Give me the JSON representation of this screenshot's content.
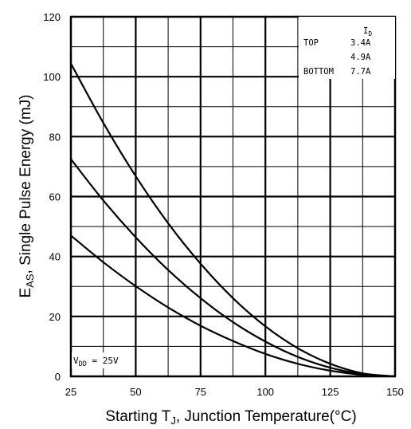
{
  "chart_data": {
    "type": "line",
    "xlabel": "Starting TJ, Junction Temperature(°C)",
    "xlabel_parts": {
      "pre": "Starting T",
      "sub": "J",
      "post": ", Junction Temperature(°C)"
    },
    "ylabel": "EAS, Single Pulse Energy (mJ)",
    "ylabel_parts": {
      "pre": "E",
      "sub": "AS",
      "post": ", Single Pulse Energy (mJ)"
    },
    "xlim": [
      25,
      150
    ],
    "ylim": [
      0,
      120
    ],
    "x_ticks": [
      25,
      50,
      75,
      100,
      125,
      150
    ],
    "y_ticks": [
      0,
      20,
      40,
      60,
      80,
      100,
      120
    ],
    "grid": true,
    "legend": {
      "placement": "top-right",
      "header": "ID",
      "header_parts": {
        "main": "I",
        "sub": "D"
      },
      "rows": [
        {
          "label": "TOP",
          "value": "3.4A"
        },
        {
          "label": "",
          "value": "4.9A"
        },
        {
          "label": "BOTTOM",
          "value": "7.7A"
        }
      ]
    },
    "annotation": {
      "text": "VDD = 25V",
      "parts": {
        "main": "V",
        "sub": "DD",
        "post": " = 25V"
      }
    },
    "series": [
      {
        "x": [
          25,
          37.5,
          50,
          62.5,
          75,
          87.5,
          100,
          112.5,
          125,
          137.5,
          150
        ],
        "y": [
          104.4,
          84.6,
          66.8,
          51.1,
          37.6,
          26.1,
          16.7,
          9.4,
          4.2,
          1.0,
          0
        ]
      },
      {
        "x": [
          25,
          37.5,
          50,
          62.5,
          75,
          87.5,
          100,
          112.5,
          125,
          137.5,
          150
        ],
        "y": [
          72.5,
          58.7,
          46.4,
          35.5,
          26.1,
          18.1,
          11.6,
          6.5,
          2.9,
          0.7,
          0
        ]
      },
      {
        "x": [
          25,
          37.5,
          50,
          62.5,
          75,
          87.5,
          100,
          112.5,
          125,
          137.5,
          150
        ],
        "y": [
          47.0,
          38.1,
          30.1,
          23.0,
          16.9,
          11.8,
          7.5,
          4.2,
          1.9,
          0.5,
          0
        ]
      }
    ]
  }
}
